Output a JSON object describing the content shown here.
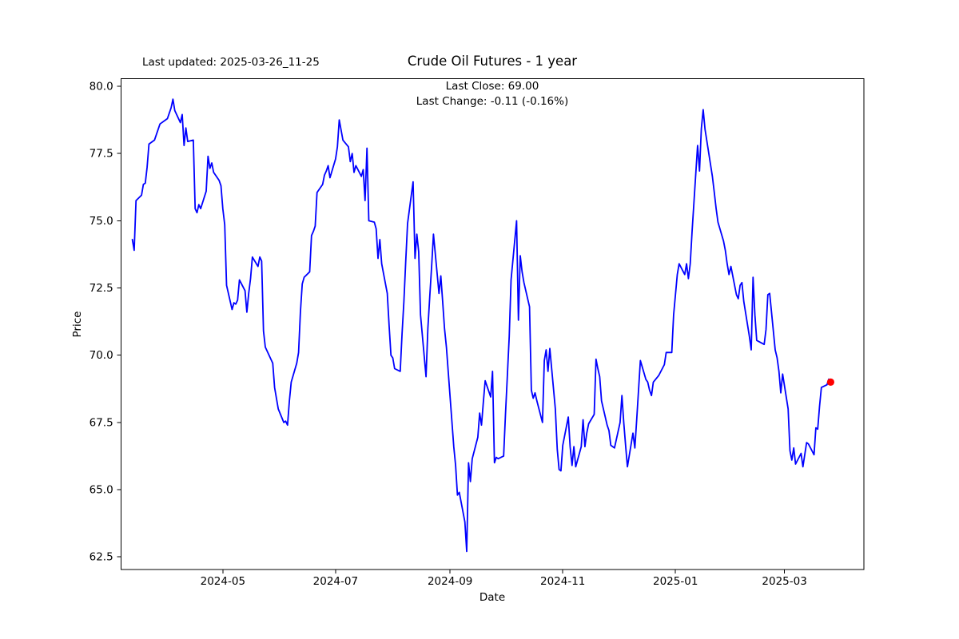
{
  "header": {
    "last_updated": "Last updated: 2025-03-26_11-25"
  },
  "chart_data": {
    "type": "line",
    "title": "Crude Oil Futures - 1 year",
    "annotations": [
      "Last Close: 69.00",
      "Last Change: -0.11 (-0.16%)"
    ],
    "xlabel": "Date",
    "ylabel": "Price",
    "legend": "none",
    "grid": false,
    "line_color": "#0000ff",
    "marker_color": "#ff0000",
    "axis_color": "#000000",
    "last_close": 69.0,
    "last_change": -0.11,
    "last_change_pct": "-0.16%",
    "ylim": [
      62.03,
      80.29
    ],
    "xlim": [
      "2024-03-07",
      "2025-04-13"
    ],
    "y_ticks": [
      "80.0",
      "77.5",
      "75.0",
      "72.5",
      "70.0",
      "67.5",
      "65.0",
      "62.5"
    ],
    "x_ticks": [
      {
        "date": "2024-05-01",
        "label": "2024-05"
      },
      {
        "date": "2024-07-01",
        "label": "2024-07"
      },
      {
        "date": "2024-09-01",
        "label": "2024-09"
      },
      {
        "date": "2024-11-01",
        "label": "2024-11"
      },
      {
        "date": "2025-01-01",
        "label": "2025-01"
      },
      {
        "date": "2025-03-01",
        "label": "2025-03"
      }
    ],
    "series": [
      {
        "name": "Crude Oil Futures",
        "points": [
          [
            "2024-03-13",
            74.3
          ],
          [
            "2024-03-14",
            73.9
          ],
          [
            "2024-03-15",
            75.75
          ],
          [
            "2024-03-18",
            75.95
          ],
          [
            "2024-03-19",
            76.35
          ],
          [
            "2024-03-20",
            76.4
          ],
          [
            "2024-03-21",
            77.0
          ],
          [
            "2024-03-22",
            77.85
          ],
          [
            "2024-03-25",
            78.0
          ],
          [
            "2024-03-26",
            78.2
          ],
          [
            "2024-03-27",
            78.4
          ],
          [
            "2024-03-28",
            78.6
          ],
          [
            "2024-04-01",
            78.8
          ],
          [
            "2024-04-02",
            79.0
          ],
          [
            "2024-04-03",
            79.2
          ],
          [
            "2024-04-04",
            79.52
          ],
          [
            "2024-04-05",
            79.1
          ],
          [
            "2024-04-08",
            78.65
          ],
          [
            "2024-04-09",
            78.95
          ],
          [
            "2024-04-10",
            77.8
          ],
          [
            "2024-04-11",
            78.45
          ],
          [
            "2024-04-12",
            77.95
          ],
          [
            "2024-04-15",
            78.0
          ],
          [
            "2024-04-16",
            75.45
          ],
          [
            "2024-04-17",
            75.3
          ],
          [
            "2024-04-18",
            75.6
          ],
          [
            "2024-04-19",
            75.45
          ],
          [
            "2024-04-22",
            76.1
          ],
          [
            "2024-04-23",
            77.4
          ],
          [
            "2024-04-24",
            76.95
          ],
          [
            "2024-04-25",
            77.15
          ],
          [
            "2024-04-26",
            76.8
          ],
          [
            "2024-04-29",
            76.5
          ],
          [
            "2024-04-30",
            76.3
          ],
          [
            "2024-05-01",
            75.45
          ],
          [
            "2024-05-02",
            74.85
          ],
          [
            "2024-05-03",
            72.6
          ],
          [
            "2024-05-06",
            71.7
          ],
          [
            "2024-05-07",
            71.95
          ],
          [
            "2024-05-08",
            71.9
          ],
          [
            "2024-05-09",
            72.05
          ],
          [
            "2024-05-10",
            72.8
          ],
          [
            "2024-05-13",
            72.4
          ],
          [
            "2024-05-14",
            71.6
          ],
          [
            "2024-05-15",
            72.3
          ],
          [
            "2024-05-16",
            72.85
          ],
          [
            "2024-05-17",
            73.65
          ],
          [
            "2024-05-20",
            73.3
          ],
          [
            "2024-05-21",
            73.65
          ],
          [
            "2024-05-22",
            73.5
          ],
          [
            "2024-05-23",
            70.9
          ],
          [
            "2024-05-24",
            70.3
          ],
          [
            "2024-05-28",
            69.7
          ],
          [
            "2024-05-29",
            68.8
          ],
          [
            "2024-05-30",
            68.4
          ],
          [
            "2024-05-31",
            68.0
          ],
          [
            "2024-06-03",
            67.5
          ],
          [
            "2024-06-04",
            67.55
          ],
          [
            "2024-06-05",
            67.4
          ],
          [
            "2024-06-06",
            68.3
          ],
          [
            "2024-06-07",
            69.0
          ],
          [
            "2024-06-10",
            69.7
          ],
          [
            "2024-06-11",
            70.1
          ],
          [
            "2024-06-12",
            71.6
          ],
          [
            "2024-06-13",
            72.65
          ],
          [
            "2024-06-14",
            72.9
          ],
          [
            "2024-06-17",
            73.1
          ],
          [
            "2024-06-18",
            74.45
          ],
          [
            "2024-06-19",
            74.6
          ],
          [
            "2024-06-20",
            74.8
          ],
          [
            "2024-06-21",
            76.05
          ],
          [
            "2024-06-24",
            76.35
          ],
          [
            "2024-06-25",
            76.7
          ],
          [
            "2024-06-26",
            76.85
          ],
          [
            "2024-06-27",
            77.05
          ],
          [
            "2024-06-28",
            76.6
          ],
          [
            "2024-07-01",
            77.3
          ],
          [
            "2024-07-02",
            77.75
          ],
          [
            "2024-07-03",
            78.75
          ],
          [
            "2024-07-05",
            78.0
          ],
          [
            "2024-07-08",
            77.75
          ],
          [
            "2024-07-09",
            77.2
          ],
          [
            "2024-07-10",
            77.5
          ],
          [
            "2024-07-11",
            76.8
          ],
          [
            "2024-07-12",
            77.05
          ],
          [
            "2024-07-15",
            76.65
          ],
          [
            "2024-07-16",
            76.9
          ],
          [
            "2024-07-17",
            75.75
          ],
          [
            "2024-07-18",
            77.7
          ],
          [
            "2024-07-19",
            75.0
          ],
          [
            "2024-07-22",
            74.95
          ],
          [
            "2024-07-23",
            74.7
          ],
          [
            "2024-07-24",
            73.6
          ],
          [
            "2024-07-25",
            74.3
          ],
          [
            "2024-07-26",
            73.4
          ],
          [
            "2024-07-29",
            72.3
          ],
          [
            "2024-07-30",
            71.1
          ],
          [
            "2024-07-31",
            70.0
          ],
          [
            "2024-08-01",
            69.9
          ],
          [
            "2024-08-02",
            69.5
          ],
          [
            "2024-08-05",
            69.4
          ],
          [
            "2024-08-06",
            70.8
          ],
          [
            "2024-08-07",
            72.0
          ],
          [
            "2024-08-08",
            73.5
          ],
          [
            "2024-08-09",
            74.9
          ],
          [
            "2024-08-12",
            76.45
          ],
          [
            "2024-08-13",
            73.6
          ],
          [
            "2024-08-14",
            74.5
          ],
          [
            "2024-08-15",
            73.85
          ],
          [
            "2024-08-16",
            71.5
          ],
          [
            "2024-08-19",
            69.2
          ],
          [
            "2024-08-20",
            71.0
          ],
          [
            "2024-08-21",
            72.2
          ],
          [
            "2024-08-22",
            73.3
          ],
          [
            "2024-08-23",
            74.5
          ],
          [
            "2024-08-26",
            72.3
          ],
          [
            "2024-08-27",
            72.95
          ],
          [
            "2024-08-28",
            72.0
          ],
          [
            "2024-08-29",
            71.0
          ],
          [
            "2024-08-30",
            70.3
          ],
          [
            "2024-09-03",
            66.6
          ],
          [
            "2024-09-04",
            65.9
          ],
          [
            "2024-09-05",
            64.8
          ],
          [
            "2024-09-06",
            64.9
          ],
          [
            "2024-09-09",
            63.8
          ],
          [
            "2024-09-10",
            62.7
          ],
          [
            "2024-09-11",
            66.0
          ],
          [
            "2024-09-12",
            65.3
          ],
          [
            "2024-09-13",
            66.15
          ],
          [
            "2024-09-16",
            66.95
          ],
          [
            "2024-09-17",
            67.85
          ],
          [
            "2024-09-18",
            67.4
          ],
          [
            "2024-09-19",
            68.25
          ],
          [
            "2024-09-20",
            69.05
          ],
          [
            "2024-09-23",
            68.45
          ],
          [
            "2024-09-24",
            69.4
          ],
          [
            "2024-09-25",
            66.0
          ],
          [
            "2024-09-26",
            66.2
          ],
          [
            "2024-09-27",
            66.15
          ],
          [
            "2024-09-30",
            66.25
          ],
          [
            "2024-10-01",
            67.8
          ],
          [
            "2024-10-02",
            69.2
          ],
          [
            "2024-10-03",
            70.7
          ],
          [
            "2024-10-04",
            72.8
          ],
          [
            "2024-10-07",
            75.0
          ],
          [
            "2024-10-08",
            71.3
          ],
          [
            "2024-10-09",
            73.7
          ],
          [
            "2024-10-10",
            73.1
          ],
          [
            "2024-10-11",
            72.7
          ],
          [
            "2024-10-14",
            71.8
          ],
          [
            "2024-10-15",
            68.7
          ],
          [
            "2024-10-16",
            68.4
          ],
          [
            "2024-10-17",
            68.6
          ],
          [
            "2024-10-18",
            68.3
          ],
          [
            "2024-10-21",
            67.5
          ],
          [
            "2024-10-22",
            69.8
          ],
          [
            "2024-10-23",
            70.2
          ],
          [
            "2024-10-24",
            69.4
          ],
          [
            "2024-10-25",
            70.25
          ],
          [
            "2024-10-28",
            68.0
          ],
          [
            "2024-10-29",
            66.5
          ],
          [
            "2024-10-30",
            65.75
          ],
          [
            "2024-10-31",
            65.7
          ],
          [
            "2024-11-01",
            66.65
          ],
          [
            "2024-11-04",
            67.7
          ],
          [
            "2024-11-05",
            66.6
          ],
          [
            "2024-11-06",
            65.9
          ],
          [
            "2024-11-07",
            66.6
          ],
          [
            "2024-11-08",
            65.85
          ],
          [
            "2024-11-11",
            66.6
          ],
          [
            "2024-11-12",
            67.6
          ],
          [
            "2024-11-13",
            66.6
          ],
          [
            "2024-11-14",
            67.1
          ],
          [
            "2024-11-15",
            67.45
          ],
          [
            "2024-11-18",
            67.8
          ],
          [
            "2024-11-19",
            69.85
          ],
          [
            "2024-11-20",
            69.5
          ],
          [
            "2024-11-21",
            69.2
          ],
          [
            "2024-11-22",
            68.3
          ],
          [
            "2024-11-25",
            67.4
          ],
          [
            "2024-11-26",
            67.2
          ],
          [
            "2024-11-27",
            66.65
          ],
          [
            "2024-11-29",
            66.55
          ],
          [
            "2024-12-02",
            67.5
          ],
          [
            "2024-12-03",
            68.5
          ],
          [
            "2024-12-04",
            67.5
          ],
          [
            "2024-12-05",
            66.65
          ],
          [
            "2024-12-06",
            65.85
          ],
          [
            "2024-12-09",
            67.1
          ],
          [
            "2024-12-10",
            66.55
          ],
          [
            "2024-12-11",
            67.6
          ],
          [
            "2024-12-12",
            68.7
          ],
          [
            "2024-12-13",
            69.8
          ],
          [
            "2024-12-16",
            69.1
          ],
          [
            "2024-12-17",
            69.0
          ],
          [
            "2024-12-18",
            68.7
          ],
          [
            "2024-12-19",
            68.5
          ],
          [
            "2024-12-20",
            69.0
          ],
          [
            "2024-12-23",
            69.25
          ],
          [
            "2024-12-26",
            69.65
          ],
          [
            "2024-12-27",
            70.1
          ],
          [
            "2024-12-30",
            70.1
          ],
          [
            "2024-12-31",
            71.5
          ],
          [
            "2025-01-02",
            73.0
          ],
          [
            "2025-01-03",
            73.4
          ],
          [
            "2025-01-06",
            73.0
          ],
          [
            "2025-01-07",
            73.4
          ],
          [
            "2025-01-08",
            72.85
          ],
          [
            "2025-01-09",
            73.4
          ],
          [
            "2025-01-10",
            74.6
          ],
          [
            "2025-01-13",
            77.8
          ],
          [
            "2025-01-14",
            76.85
          ],
          [
            "2025-01-15",
            78.43
          ],
          [
            "2025-01-16",
            79.13
          ],
          [
            "2025-01-17",
            78.4
          ],
          [
            "2025-01-21",
            76.65
          ],
          [
            "2025-01-22",
            76.05
          ],
          [
            "2025-01-23",
            75.45
          ],
          [
            "2025-01-24",
            74.95
          ],
          [
            "2025-01-27",
            74.25
          ],
          [
            "2025-01-28",
            73.9
          ],
          [
            "2025-01-29",
            73.4
          ],
          [
            "2025-01-30",
            73.0
          ],
          [
            "2025-01-31",
            73.3
          ],
          [
            "2025-02-03",
            72.25
          ],
          [
            "2025-02-04",
            72.1
          ],
          [
            "2025-02-05",
            72.6
          ],
          [
            "2025-02-06",
            72.7
          ],
          [
            "2025-02-07",
            72.0
          ],
          [
            "2025-02-10",
            70.7
          ],
          [
            "2025-02-11",
            70.2
          ],
          [
            "2025-02-12",
            72.9
          ],
          [
            "2025-02-13",
            71.5
          ],
          [
            "2025-02-14",
            70.55
          ],
          [
            "2025-02-18",
            70.4
          ],
          [
            "2025-02-19",
            70.95
          ],
          [
            "2025-02-20",
            72.25
          ],
          [
            "2025-02-21",
            72.3
          ],
          [
            "2025-02-24",
            70.2
          ],
          [
            "2025-02-25",
            69.9
          ],
          [
            "2025-02-26",
            69.4
          ],
          [
            "2025-02-27",
            68.6
          ],
          [
            "2025-02-28",
            69.3
          ],
          [
            "2025-03-03",
            68.0
          ],
          [
            "2025-03-04",
            66.45
          ],
          [
            "2025-03-05",
            66.1
          ],
          [
            "2025-03-06",
            66.55
          ],
          [
            "2025-03-07",
            65.95
          ],
          [
            "2025-03-10",
            66.35
          ],
          [
            "2025-03-11",
            65.85
          ],
          [
            "2025-03-12",
            66.3
          ],
          [
            "2025-03-13",
            66.75
          ],
          [
            "2025-03-14",
            66.7
          ],
          [
            "2025-03-17",
            66.3
          ],
          [
            "2025-03-18",
            67.3
          ],
          [
            "2025-03-19",
            67.25
          ],
          [
            "2025-03-20",
            68.1
          ],
          [
            "2025-03-21",
            68.8
          ],
          [
            "2025-03-24",
            68.9
          ],
          [
            "2025-03-25",
            69.11
          ],
          [
            "2025-03-26",
            69.0
          ]
        ]
      }
    ]
  }
}
